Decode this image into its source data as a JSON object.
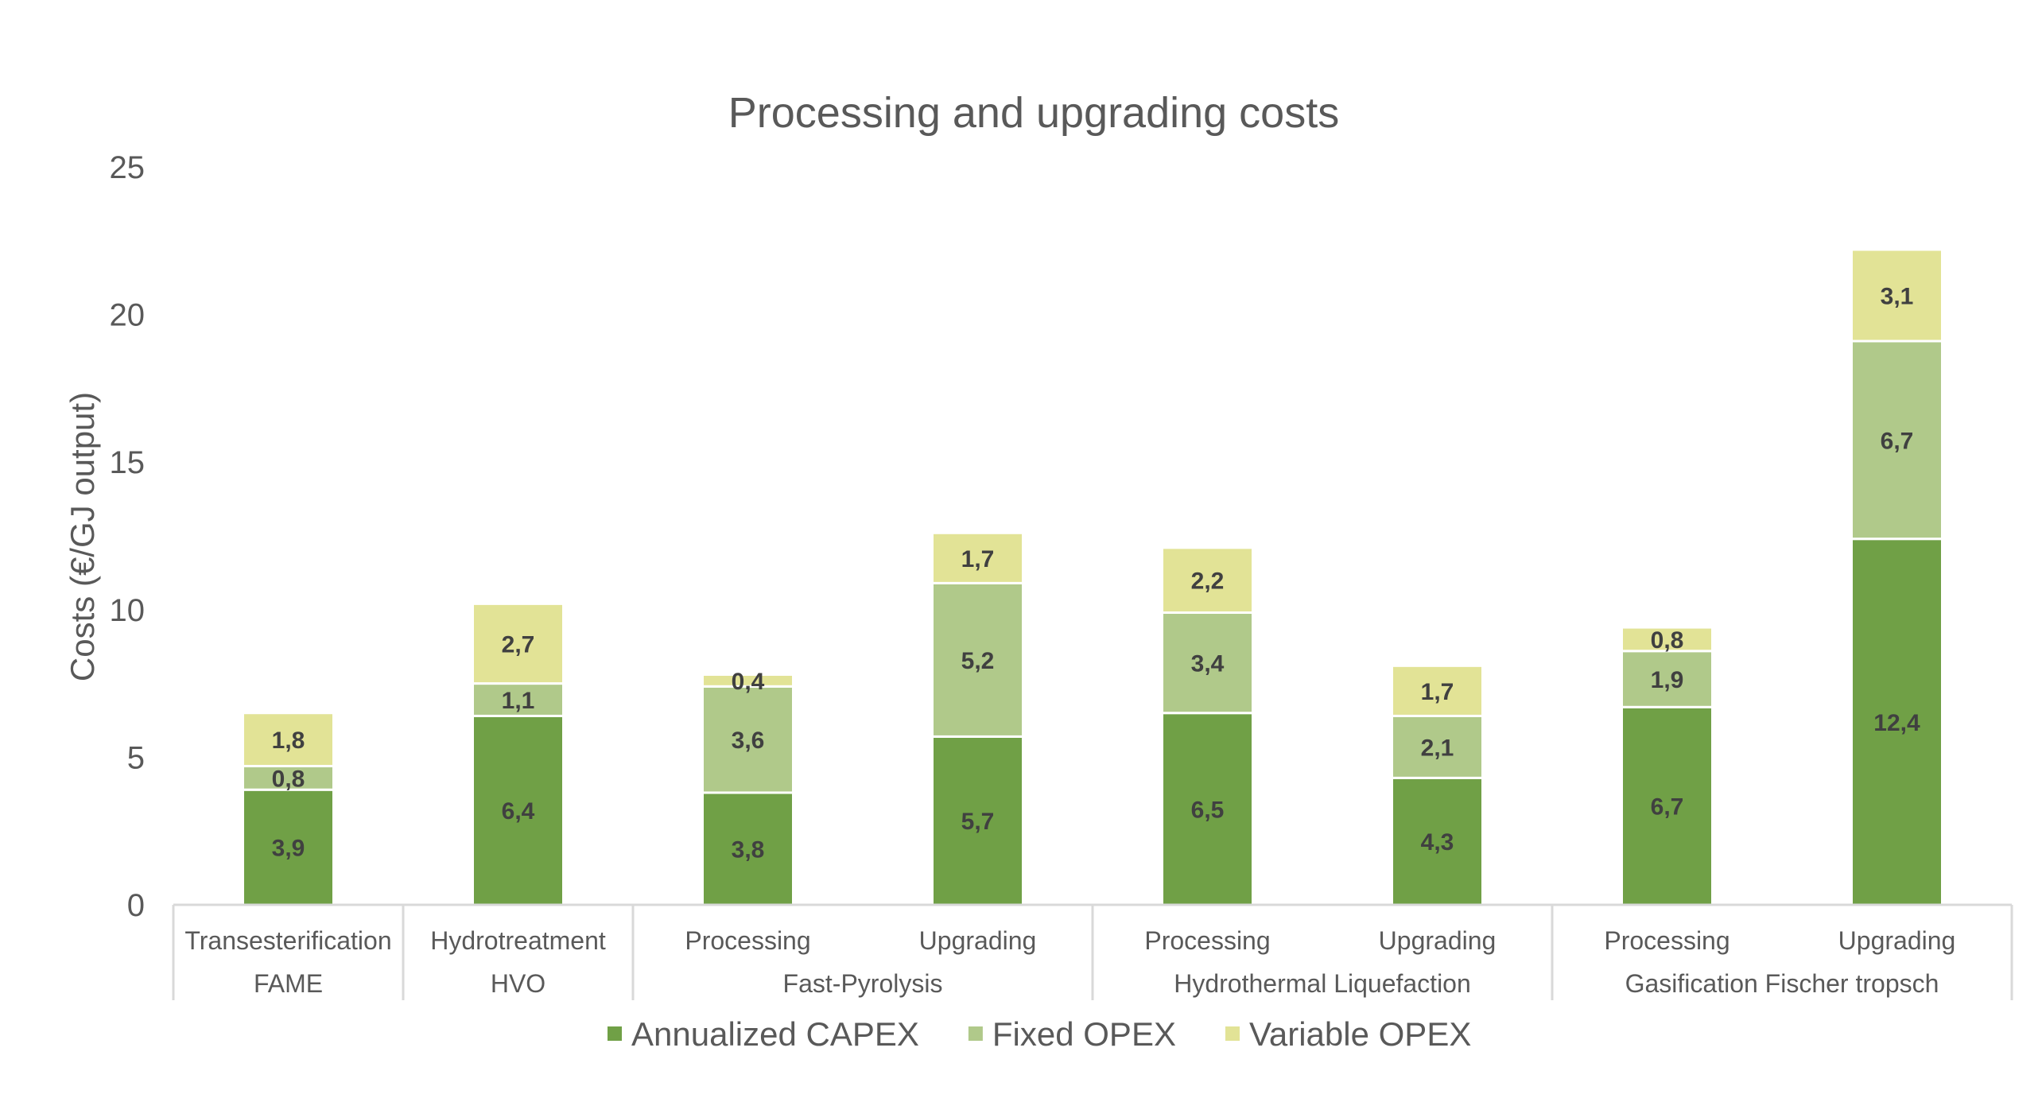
{
  "chart_data": {
    "type": "bar",
    "stacked": true,
    "title": "Processing and upgrading costs",
    "xlabel": "",
    "ylabel": "Costs (€/GJ output)",
    "ylim": [
      0,
      25
    ],
    "yticks": [
      "0",
      "5",
      "10",
      "15",
      "20",
      "25"
    ],
    "grid": false,
    "legend_position": "bottom",
    "categories": [
      {
        "label": "Transesterification",
        "group": "FAME"
      },
      {
        "label": "Hydrotreatment",
        "group": "HVO"
      },
      {
        "label": "Processing",
        "group": "Fast-Pyrolysis"
      },
      {
        "label": "Upgrading",
        "group": "Fast-Pyrolysis"
      },
      {
        "label": "Processing",
        "group": "Hydrothermal Liquefaction"
      },
      {
        "label": "Upgrading",
        "group": "Hydrothermal Liquefaction"
      },
      {
        "label": "Processing",
        "group": "Gasification Fischer tropsch"
      },
      {
        "label": "Upgrading",
        "group": "Gasification Fischer tropsch"
      }
    ],
    "groups": [
      "FAME",
      "HVO",
      "Fast-Pyrolysis",
      "Hydrothermal Liquefaction",
      "Gasification Fischer tropsch"
    ],
    "series": [
      {
        "name": "Annualized CAPEX",
        "color": "#70a046",
        "values": [
          3.9,
          6.4,
          3.8,
          5.7,
          6.5,
          4.3,
          6.7,
          12.4
        ],
        "labels": [
          "3,9",
          "6,4",
          "3,8",
          "5,7",
          "6,5",
          "4,3",
          "6,7",
          "12,4"
        ]
      },
      {
        "name": "Fixed OPEX",
        "color": "#b0c98a",
        "values": [
          0.8,
          1.1,
          3.6,
          5.2,
          3.4,
          2.1,
          1.9,
          6.7
        ],
        "labels": [
          "0,8",
          "1,1",
          "3,6",
          "5,2",
          "3,4",
          "2,1",
          "1,9",
          "6,7"
        ]
      },
      {
        "name": "Variable OPEX",
        "color": "#e2e396",
        "values": [
          1.8,
          2.7,
          0.4,
          1.7,
          2.2,
          1.7,
          0.8,
          3.1
        ],
        "labels": [
          "1,8",
          "2,7",
          "0,4",
          "1,7",
          "2,2",
          "1,7",
          "0,8",
          "3,1"
        ]
      }
    ]
  }
}
